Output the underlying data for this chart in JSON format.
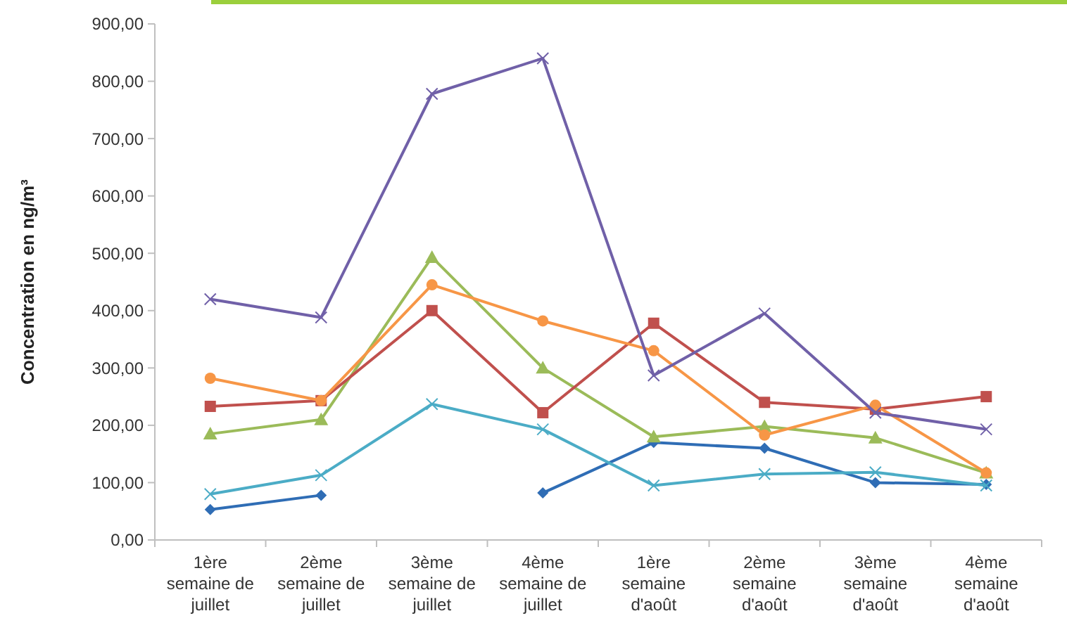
{
  "chart_data": {
    "type": "line",
    "ylabel": "Concentration en ng/m³",
    "categories": [
      "1ère semaine de juillet",
      "2ème semaine de juillet",
      "3ème semaine de juillet",
      "4ème semaine de juillet",
      "1ère semaine d'août",
      "2ème semaine d'août",
      "3ème semaine d'août",
      "4ème semaine d'août"
    ],
    "ylim": [
      0,
      900
    ],
    "yticks": [
      {
        "value": 0,
        "label": "0,00"
      },
      {
        "value": 100,
        "label": "100,00"
      },
      {
        "value": 200,
        "label": "200,00"
      },
      {
        "value": 300,
        "label": "300,00"
      },
      {
        "value": 400,
        "label": "400,00"
      },
      {
        "value": 500,
        "label": "500,00"
      },
      {
        "value": 600,
        "label": "600,00"
      },
      {
        "value": 700,
        "label": "700,00"
      },
      {
        "value": 800,
        "label": "800,00"
      },
      {
        "value": 900,
        "label": "900,00"
      }
    ],
    "grid": false,
    "series": [
      {
        "color": "#2f6db5",
        "marker": "diamond",
        "values": [
          53,
          78,
          null,
          82,
          170,
          160,
          100,
          97
        ]
      },
      {
        "color": "#4bacc6",
        "marker": "cross",
        "values": [
          80,
          113,
          237,
          193,
          95,
          115,
          118,
          95
        ]
      },
      {
        "color": "#9bbb59",
        "marker": "triangle",
        "values": [
          185,
          210,
          493,
          300,
          180,
          198,
          178,
          117
        ]
      },
      {
        "color": "#c0504d",
        "marker": "square",
        "values": [
          233,
          243,
          400,
          222,
          378,
          240,
          228,
          250
        ]
      },
      {
        "color": "#f79646",
        "marker": "circle",
        "values": [
          282,
          243,
          445,
          382,
          330,
          183,
          235,
          117
        ]
      },
      {
        "color": "#7060a8",
        "marker": "cross",
        "values": [
          420,
          388,
          778,
          840,
          287,
          395,
          222,
          193
        ]
      }
    ]
  }
}
